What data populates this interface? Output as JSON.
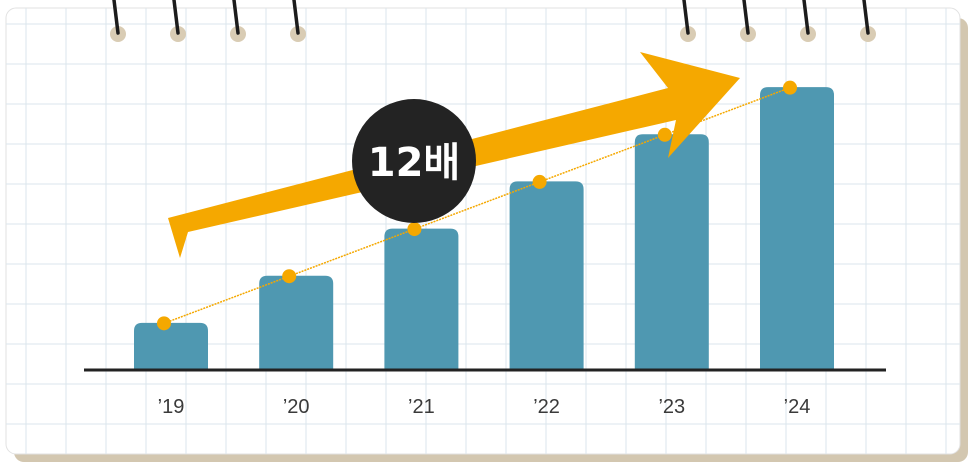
{
  "chart_data": {
    "type": "bar",
    "categories": [
      "’19",
      "’20",
      "’21",
      "’22",
      "’23",
      "’24"
    ],
    "values": [
      1,
      2,
      3,
      4,
      5,
      6
    ],
    "ylim": [
      0,
      7
    ],
    "grid": true,
    "trend_line": true,
    "annotation": "12배"
  },
  "colors": {
    "bar": "#4f98b1",
    "accent": "#f5a800",
    "axis": "#222222",
    "grid": "#dbe6ec",
    "paper_edge": "#d3c7b0",
    "badge": "#232323"
  },
  "icons": [
    "binder-ring-icon",
    "trend-arrow-icon"
  ]
}
